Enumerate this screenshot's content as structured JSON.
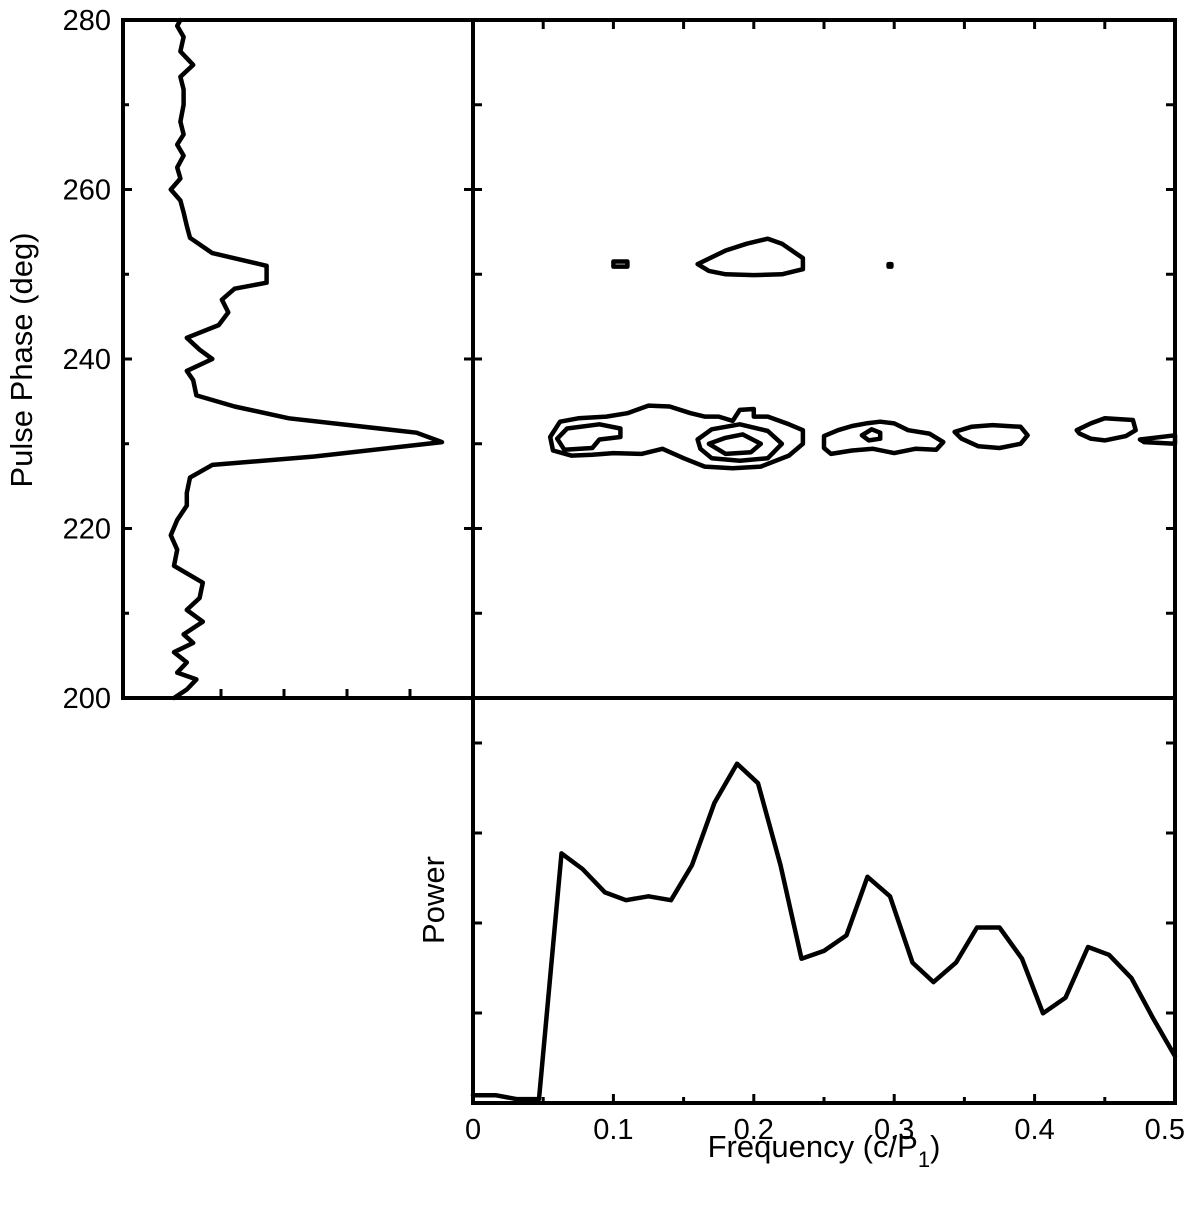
{
  "chart_data": [
    {
      "id": "profile",
      "type": "line",
      "title": "",
      "orientation": "vertical",
      "ylabel": "Pulse Phase (deg)",
      "ylim": [
        200,
        280
      ],
      "yticks": [
        200,
        220,
        240,
        260,
        280
      ],
      "xlim": [
        0,
        1
      ],
      "profile": [
        {
          "phase": 200.0,
          "v": 0.16
        },
        {
          "phase": 201.0,
          "v": 0.2
        },
        {
          "phase": 202.2,
          "v": 0.23
        },
        {
          "phase": 203.0,
          "v": 0.17
        },
        {
          "phase": 204.2,
          "v": 0.2
        },
        {
          "phase": 205.4,
          "v": 0.16
        },
        {
          "phase": 206.5,
          "v": 0.22
        },
        {
          "phase": 207.5,
          "v": 0.19
        },
        {
          "phase": 209.0,
          "v": 0.25
        },
        {
          "phase": 210.4,
          "v": 0.2
        },
        {
          "phase": 211.8,
          "v": 0.24
        },
        {
          "phase": 213.6,
          "v": 0.25
        },
        {
          "phase": 215.6,
          "v": 0.16
        },
        {
          "phase": 217.5,
          "v": 0.17
        },
        {
          "phase": 219.2,
          "v": 0.15
        },
        {
          "phase": 221.0,
          "v": 0.17
        },
        {
          "phase": 222.7,
          "v": 0.2
        },
        {
          "phase": 224.2,
          "v": 0.2
        },
        {
          "phase": 226.0,
          "v": 0.21
        },
        {
          "phase": 227.5,
          "v": 0.28
        },
        {
          "phase": 228.5,
          "v": 0.6
        },
        {
          "phase": 230.2,
          "v": 1.0
        },
        {
          "phase": 231.3,
          "v": 0.92
        },
        {
          "phase": 233.0,
          "v": 0.52
        },
        {
          "phase": 234.4,
          "v": 0.35
        },
        {
          "phase": 235.7,
          "v": 0.23
        },
        {
          "phase": 237.5,
          "v": 0.22
        },
        {
          "phase": 238.6,
          "v": 0.2
        },
        {
          "phase": 240.0,
          "v": 0.28
        },
        {
          "phase": 241.1,
          "v": 0.24
        },
        {
          "phase": 242.5,
          "v": 0.2
        },
        {
          "phase": 244.0,
          "v": 0.3
        },
        {
          "phase": 245.5,
          "v": 0.33
        },
        {
          "phase": 247.0,
          "v": 0.31
        },
        {
          "phase": 248.3,
          "v": 0.35
        },
        {
          "phase": 249.0,
          "v": 0.45
        },
        {
          "phase": 251.0,
          "v": 0.45
        },
        {
          "phase": 252.5,
          "v": 0.28
        },
        {
          "phase": 254.3,
          "v": 0.21
        },
        {
          "phase": 255.7,
          "v": 0.2
        },
        {
          "phase": 257.3,
          "v": 0.19
        },
        {
          "phase": 258.7,
          "v": 0.18
        },
        {
          "phase": 260.0,
          "v": 0.15
        },
        {
          "phase": 261.3,
          "v": 0.18
        },
        {
          "phase": 262.6,
          "v": 0.17
        },
        {
          "phase": 264.0,
          "v": 0.19
        },
        {
          "phase": 265.3,
          "v": 0.17
        },
        {
          "phase": 266.5,
          "v": 0.19
        },
        {
          "phase": 268.0,
          "v": 0.18
        },
        {
          "phase": 270.0,
          "v": 0.19
        },
        {
          "phase": 271.8,
          "v": 0.19
        },
        {
          "phase": 273.3,
          "v": 0.18
        },
        {
          "phase": 274.7,
          "v": 0.22
        },
        {
          "phase": 276.3,
          "v": 0.18
        },
        {
          "phase": 278.0,
          "v": 0.19
        },
        {
          "phase": 279.3,
          "v": 0.17
        },
        {
          "phase": 280.0,
          "v": 0.18
        }
      ]
    },
    {
      "id": "contour-map",
      "type": "contour",
      "title": "",
      "xlim": [
        0,
        0.5
      ],
      "ylim": [
        200,
        280
      ],
      "xlabel": "",
      "ylabel": "",
      "contours": [
        {
          "level": 1,
          "points": [
            [
              0.1,
              251.5
            ],
            [
              0.11,
              251.5
            ],
            [
              0.11,
              250.9
            ],
            [
              0.1,
              250.9
            ]
          ]
        },
        {
          "level": 1,
          "points": [
            [
              0.16,
              251.2
            ],
            [
              0.18,
              252.8
            ],
            [
              0.195,
              253.6
            ],
            [
              0.21,
              254.2
            ],
            [
              0.22,
              253.6
            ],
            [
              0.235,
              251.9
            ],
            [
              0.235,
              250.6
            ],
            [
              0.22,
              250.0
            ],
            [
              0.2,
              249.9
            ],
            [
              0.18,
              250.0
            ],
            [
              0.168,
              250.4
            ]
          ]
        },
        {
          "level": 1,
          "points": [
            [
              0.296,
              251.2
            ],
            [
              0.298,
              251.2
            ],
            [
              0.298,
              250.9
            ],
            [
              0.296,
              250.9
            ]
          ]
        },
        {
          "level": 1,
          "points": [
            [
              0.055,
              230.8
            ],
            [
              0.062,
              232.6
            ],
            [
              0.075,
              233.0
            ],
            [
              0.095,
              233.2
            ],
            [
              0.11,
              233.6
            ],
            [
              0.125,
              234.5
            ],
            [
              0.14,
              234.4
            ],
            [
              0.155,
              233.6
            ],
            [
              0.165,
              233.2
            ],
            [
              0.175,
              233.2
            ],
            [
              0.185,
              232.7
            ],
            [
              0.19,
              234.0
            ],
            [
              0.2,
              234.1
            ],
            [
              0.2,
              233.2
            ],
            [
              0.21,
              233.2
            ],
            [
              0.225,
              232.3
            ],
            [
              0.235,
              231.6
            ],
            [
              0.235,
              230.0
            ],
            [
              0.225,
              228.6
            ],
            [
              0.205,
              227.3
            ],
            [
              0.185,
              227.1
            ],
            [
              0.165,
              227.3
            ],
            [
              0.15,
              228.3
            ],
            [
              0.135,
              229.4
            ],
            [
              0.12,
              228.8
            ],
            [
              0.1,
              228.9
            ],
            [
              0.085,
              228.7
            ],
            [
              0.07,
              228.6
            ],
            [
              0.057,
              229.2
            ]
          ]
        },
        {
          "level": 2,
          "points": [
            [
              0.06,
              230.6
            ],
            [
              0.067,
              231.8
            ],
            [
              0.09,
              232.3
            ],
            [
              0.105,
              231.8
            ],
            [
              0.105,
              230.8
            ],
            [
              0.09,
              230.5
            ],
            [
              0.085,
              229.5
            ],
            [
              0.065,
              229.3
            ]
          ]
        },
        {
          "level": 2,
          "points": [
            [
              0.16,
              230.5
            ],
            [
              0.17,
              231.7
            ],
            [
              0.19,
              232.3
            ],
            [
              0.21,
              231.5
            ],
            [
              0.22,
              230.0
            ],
            [
              0.21,
              228.3
            ],
            [
              0.19,
              228.0
            ],
            [
              0.17,
              228.3
            ],
            [
              0.162,
              229.4
            ]
          ]
        },
        {
          "level": 3,
          "points": [
            [
              0.168,
              230.0
            ],
            [
              0.18,
              230.7
            ],
            [
              0.192,
              231.1
            ],
            [
              0.205,
              230.0
            ],
            [
              0.198,
              229.0
            ],
            [
              0.18,
              228.8
            ]
          ]
        },
        {
          "level": 1,
          "points": [
            [
              0.25,
              230.9
            ],
            [
              0.26,
              231.6
            ],
            [
              0.27,
              232.1
            ],
            [
              0.28,
              232.4
            ],
            [
              0.29,
              232.6
            ],
            [
              0.3,
              232.4
            ],
            [
              0.31,
              231.6
            ],
            [
              0.325,
              231.2
            ],
            [
              0.335,
              230.2
            ],
            [
              0.33,
              229.3
            ],
            [
              0.315,
              229.4
            ],
            [
              0.3,
              228.9
            ],
            [
              0.285,
              229.4
            ],
            [
              0.27,
              229.2
            ],
            [
              0.255,
              228.8
            ],
            [
              0.25,
              229.5
            ]
          ]
        },
        {
          "level": 2,
          "points": [
            [
              0.277,
              231.0
            ],
            [
              0.284,
              231.7
            ],
            [
              0.29,
              231.3
            ],
            [
              0.29,
              230.6
            ],
            [
              0.282,
              230.4
            ]
          ]
        },
        {
          "level": 1,
          "points": [
            [
              0.343,
              231.4
            ],
            [
              0.355,
              232.0
            ],
            [
              0.37,
              232.2
            ],
            [
              0.39,
              232.0
            ],
            [
              0.395,
              231.0
            ],
            [
              0.39,
              230.0
            ],
            [
              0.375,
              229.5
            ],
            [
              0.36,
              229.7
            ],
            [
              0.348,
              230.6
            ]
          ]
        },
        {
          "level": 1,
          "points": [
            [
              0.43,
              231.6
            ],
            [
              0.44,
              232.4
            ],
            [
              0.45,
              233.0
            ],
            [
              0.47,
              232.8
            ],
            [
              0.472,
              231.6
            ],
            [
              0.465,
              230.9
            ],
            [
              0.45,
              230.4
            ],
            [
              0.44,
              230.6
            ],
            [
              0.432,
              231.2
            ]
          ]
        },
        {
          "level": 1,
          "points": [
            [
              0.475,
              230.5
            ],
            [
              0.5,
              231.0
            ],
            [
              0.5,
              230.0
            ],
            [
              0.478,
              230.2
            ]
          ]
        }
      ]
    },
    {
      "id": "spectrum",
      "type": "line",
      "title": "",
      "xlabel": "Frequency (c/P",
      "xlabel_sub": "1",
      "xlabel_end": ")",
      "ylabel": "Power",
      "xlim": [
        0,
        0.5
      ],
      "ylim": [
        0,
        1
      ],
      "xticks": [
        0,
        0.1,
        0.2,
        0.3,
        0.4,
        0.5
      ],
      "xtick_labels": [
        "0",
        "0.1",
        "0.2",
        "0.3",
        "0.4",
        "0.5"
      ],
      "x": [
        0.0,
        0.016,
        0.031,
        0.047,
        0.063,
        0.078,
        0.094,
        0.109,
        0.125,
        0.141,
        0.156,
        0.172,
        0.188,
        0.203,
        0.219,
        0.234,
        0.25,
        0.266,
        0.281,
        0.297,
        0.313,
        0.328,
        0.344,
        0.359,
        0.375,
        0.391,
        0.406,
        0.422,
        0.438,
        0.453,
        0.469,
        0.484,
        0.5
      ],
      "y": [
        0.02,
        0.02,
        0.01,
        0.01,
        0.64,
        0.6,
        0.54,
        0.52,
        0.53,
        0.52,
        0.61,
        0.77,
        0.87,
        0.82,
        0.61,
        0.37,
        0.39,
        0.43,
        0.58,
        0.53,
        0.36,
        0.31,
        0.36,
        0.45,
        0.45,
        0.37,
        0.23,
        0.27,
        0.4,
        0.38,
        0.32,
        0.22,
        0.12
      ]
    }
  ]
}
